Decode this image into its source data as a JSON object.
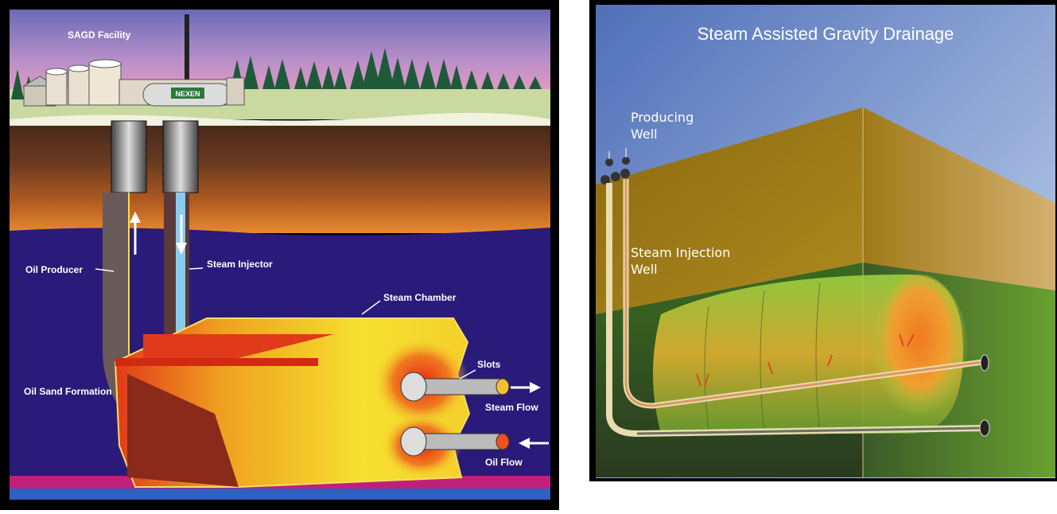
{
  "left_diagram": {
    "facility_label": "SAGD Facility",
    "tank_logo_text": "NEXEN",
    "oil_producer": "Oil Producer",
    "steam_injector": "Steam Injector",
    "steam_chamber": "Steam Chamber",
    "slots": "Slots",
    "oil_sand_formation": "Oil Sand Formation",
    "steam_flow": "Steam Flow",
    "oil_flow": "Oil Flow"
  },
  "right_diagram": {
    "title": "Steam Assisted Gravity Drainage",
    "producing_well_line1": "Producing",
    "producing_well_line2": "Well",
    "steam_injection_line1": "Steam Injection",
    "steam_injection_line2": "Well"
  },
  "colors": {
    "formation_blue": "#2a1a7a",
    "sky_pink": "#d58ab8",
    "chamber_yellow": "#f5e23a",
    "right_sky": "#6f8fd0",
    "right_soil": "#9a7a1a",
    "right_green": "#5aa020"
  }
}
